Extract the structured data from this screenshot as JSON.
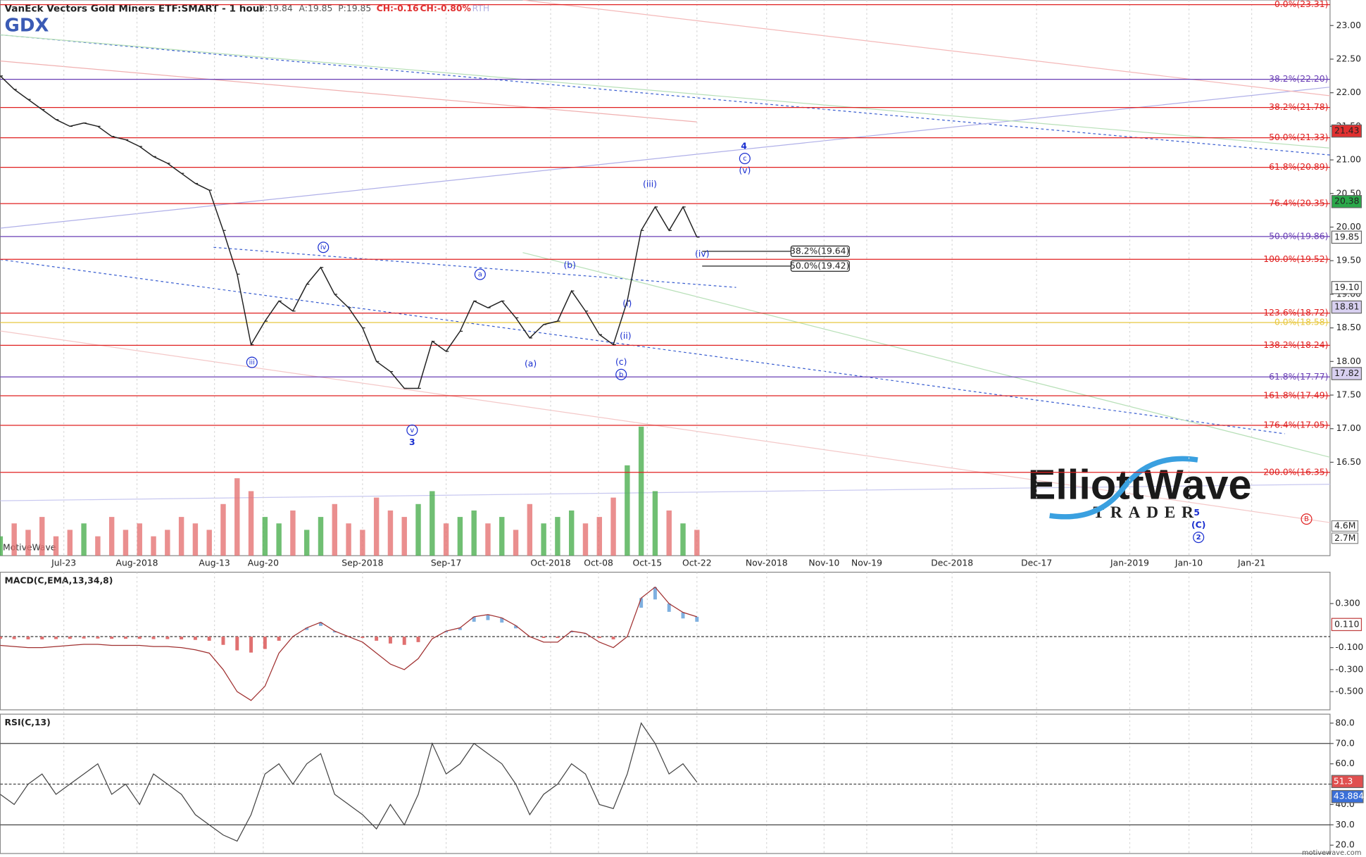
{
  "header": {
    "symbol": "GDX",
    "title": "VanEck Vectors Gold Miners ETF:SMART - 1 hour",
    "bid": "B:19.84",
    "ask": "A:19.85",
    "price": "P:19.85",
    "change": "CH:-0.16",
    "change_pct": "CH:-0.80%",
    "session": "RTH",
    "watermark": "MotiveWave",
    "footer": "motivewave.com"
  },
  "logo": {
    "line1": "ElliottWave",
    "line2": "TRADER"
  },
  "chart_data": {
    "type": "line",
    "values": [
      22.25,
      22.05,
      21.9,
      21.75,
      21.6,
      21.5,
      21.55,
      21.5,
      21.35,
      21.3,
      21.2,
      21.05,
      20.95,
      20.8,
      20.65,
      20.55,
      19.95,
      19.3,
      18.25,
      18.6,
      18.9,
      18.75,
      19.15,
      19.4,
      19.0,
      18.8,
      18.5,
      18.0,
      17.85,
      17.6,
      17.6,
      18.3,
      18.15,
      18.45,
      18.9,
      18.8,
      18.9,
      18.65,
      18.35,
      18.55,
      18.6,
      19.05,
      18.75,
      18.4,
      18.25,
      18.9,
      19.95,
      20.3,
      19.95,
      20.3,
      19.85
    ],
    "color": "#222222",
    "ylim": [
      15.11,
      23.38
    ],
    "yticks": [
      {
        "value": 23,
        "label": "23.00"
      },
      {
        "value": 22.5,
        "label": "22.50"
      },
      {
        "value": 22,
        "label": "22.00"
      },
      {
        "value": 21.5,
        "label": "21.50"
      },
      {
        "value": 21,
        "label": "21.00"
      },
      {
        "value": 20.5,
        "label": "20.50"
      },
      {
        "value": 20,
        "label": "20.00"
      },
      {
        "value": 19.5,
        "label": "19.50"
      },
      {
        "value": 19,
        "label": "19.00"
      },
      {
        "value": 18.5,
        "label": "18.50"
      },
      {
        "value": 18,
        "label": "18.00"
      },
      {
        "value": 17.5,
        "label": "17.50"
      },
      {
        "value": 17,
        "label": "17.00"
      },
      {
        "value": 16.5,
        "label": "16.50"
      }
    ],
    "xlabels": [
      "Jul-23",
      "Aug-2018",
      "Aug-13",
      "Aug-20",
      "Sep-2018",
      "Sep-17",
      "Oct-2018",
      "Oct-08",
      "Oct-15",
      "Oct-22",
      "Nov-2018",
      "Nov-10",
      "Nov-19",
      "Dec-2018",
      "Dec-17",
      "Jan-2019",
      "Jan-10",
      "Jan-21"
    ],
    "grid": true,
    "fib_levels": [
      {
        "value": 23.31,
        "label": "0.0%(23.31)",
        "color": "#e02020"
      },
      {
        "value": 22.2,
        "label": "38.2%(22.20)",
        "color": "#6a3fb5"
      },
      {
        "value": 21.78,
        "label": "38.2%(21.78)",
        "color": "#e02020"
      },
      {
        "value": 21.33,
        "label": "50.0%(21.33)",
        "color": "#e02020"
      },
      {
        "value": 20.89,
        "label": "61.8%(20.89)",
        "color": "#e02020"
      },
      {
        "value": 20.35,
        "label": "76.4%(20.35)",
        "color": "#e02020"
      },
      {
        "value": 19.86,
        "label": "50.0%(19.86)",
        "color": "#6a3fb5"
      },
      {
        "value": 19.52,
        "label": "100.0%(19.52)",
        "color": "#e02020"
      },
      {
        "value": 18.72,
        "label": "123.6%(18.72)",
        "color": "#e02020"
      },
      {
        "value": 18.58,
        "label": "0.0%(18.58)",
        "color": "#e8c840"
      },
      {
        "value": 18.24,
        "label": "138.2%(18.24)",
        "color": "#e02020"
      },
      {
        "value": 17.77,
        "label": "61.8%(17.77)",
        "color": "#6a3fb5"
      },
      {
        "value": 17.49,
        "label": "161.8%(17.49)",
        "color": "#e02020"
      },
      {
        "value": 17.05,
        "label": "176.4%(17.05)",
        "color": "#e02020"
      },
      {
        "value": 16.35,
        "label": "200.0%(16.35)",
        "color": "#e02020"
      }
    ],
    "retracements": [
      {
        "value": 19.64,
        "label": "38.2%(19.64)"
      },
      {
        "value": 19.42,
        "label": "50.0%(19.42)"
      }
    ],
    "price_tags": [
      {
        "value": 21.43,
        "label": "21.43",
        "color": "#e03030"
      },
      {
        "value": 20.38,
        "label": "20.38",
        "color": "#2aa84a"
      },
      {
        "value": 19.85,
        "label": "19.85",
        "color": "#ffffff"
      },
      {
        "value": 19.1,
        "label": "19.10",
        "color": "#ffffff"
      },
      {
        "value": 18.81,
        "label": "18.81",
        "color": "#d8d0f0"
      },
      {
        "value": 17.82,
        "label": "17.82",
        "color": "#d8d0f0"
      }
    ],
    "wave_labels": [
      {
        "text": "(iii)"
      },
      {
        "text": "4",
        "bold": true
      },
      {
        "text": "c",
        "circled": true
      },
      {
        "text": "(v)"
      },
      {
        "text": "(iv)"
      },
      {
        "text": "iv",
        "circled": true
      },
      {
        "text": "iii",
        "circled": true
      },
      {
        "text": "v",
        "circled": true
      },
      {
        "text": "3",
        "bold": true
      },
      {
        "text": "a",
        "circled": true
      },
      {
        "text": "(b)"
      },
      {
        "text": "(a)"
      },
      {
        "text": "(i)"
      },
      {
        "text": "(ii)"
      },
      {
        "text": "(c)"
      },
      {
        "text": "b",
        "circled": true
      },
      {
        "text": "B",
        "circled": true,
        "color": "#e02020"
      },
      {
        "text": "5",
        "bold": true
      },
      {
        "text": "(C)",
        "bold": true
      },
      {
        "text": "2",
        "circled": true,
        "bold": true
      }
    ],
    "volume": {
      "values": [
        3,
        5,
        4,
        6,
        3,
        4,
        5,
        3,
        6,
        4,
        5,
        3,
        4,
        6,
        5,
        4,
        8,
        12,
        10,
        6,
        5,
        7,
        4,
        6,
        8,
        5,
        4,
        9,
        7,
        6,
        8,
        10,
        5,
        6,
        7,
        5,
        6,
        4,
        8,
        5,
        6,
        7,
        5,
        6,
        9,
        14,
        20,
        10,
        7,
        5,
        4
      ],
      "ylim": [
        0,
        21.6
      ],
      "tags": [
        {
          "value": 4.6,
          "label": "4.6M"
        },
        {
          "value": 2.7,
          "label": "2.7M"
        }
      ],
      "up_color": "#4caf50",
      "down_color": "#e57373"
    },
    "macd": {
      "title": "MACD(C,EMA,13,34,8)",
      "values": [
        -0.08,
        -0.09,
        -0.1,
        -0.1,
        -0.09,
        -0.08,
        -0.07,
        -0.07,
        -0.08,
        -0.08,
        -0.08,
        -0.09,
        -0.09,
        -0.1,
        -0.12,
        -0.15,
        -0.3,
        -0.5,
        -0.58,
        -0.45,
        -0.15,
        0.0,
        0.08,
        0.13,
        0.05,
        0.0,
        -0.05,
        -0.15,
        -0.25,
        -0.3,
        -0.2,
        -0.02,
        0.05,
        0.08,
        0.18,
        0.2,
        0.17,
        0.1,
        0.0,
        -0.05,
        -0.05,
        0.05,
        0.03,
        -0.05,
        -0.1,
        0.0,
        0.35,
        0.45,
        0.3,
        0.22,
        0.18
      ],
      "color": "#a03030",
      "ylim": [
        -0.665,
        0.585
      ],
      "yticks": [
        {
          "value": 0.3,
          "label": "0.300"
        },
        {
          "value": -0.1,
          "label": "-0.100"
        },
        {
          "value": -0.3,
          "label": "-0.300"
        },
        {
          "value": -0.5,
          "label": "-0.500"
        }
      ],
      "tag": {
        "value": 0.11,
        "label": "0.110"
      }
    },
    "rsi": {
      "title": "RSI(C,13)",
      "values": [
        45,
        40,
        50,
        55,
        45,
        50,
        55,
        60,
        45,
        50,
        40,
        55,
        50,
        45,
        35,
        30,
        25,
        22,
        35,
        55,
        60,
        50,
        60,
        65,
        45,
        40,
        35,
        28,
        40,
        30,
        45,
        70,
        55,
        60,
        70,
        65,
        60,
        50,
        35,
        45,
        50,
        60,
        55,
        40,
        38,
        55,
        80,
        70,
        55,
        60,
        51
      ],
      "color": "#444444",
      "ylim": [
        15.9,
        84.4
      ],
      "yticks": [
        {
          "value": 80,
          "label": "80.0"
        },
        {
          "value": 70,
          "label": "70.0"
        },
        {
          "value": 60,
          "label": "60.0"
        },
        {
          "value": 50,
          "label": "50.0"
        },
        {
          "value": 40,
          "label": "40.0"
        },
        {
          "value": 30,
          "label": "30.0"
        },
        {
          "value": 20,
          "label": "20.0"
        }
      ],
      "bands": [
        70,
        50,
        30
      ],
      "tags": [
        {
          "value": 51.3,
          "label": "51.3",
          "color": "#e05050"
        },
        {
          "value": 43.884,
          "label": "43.884",
          "color": "#3a6fd8"
        }
      ]
    }
  }
}
